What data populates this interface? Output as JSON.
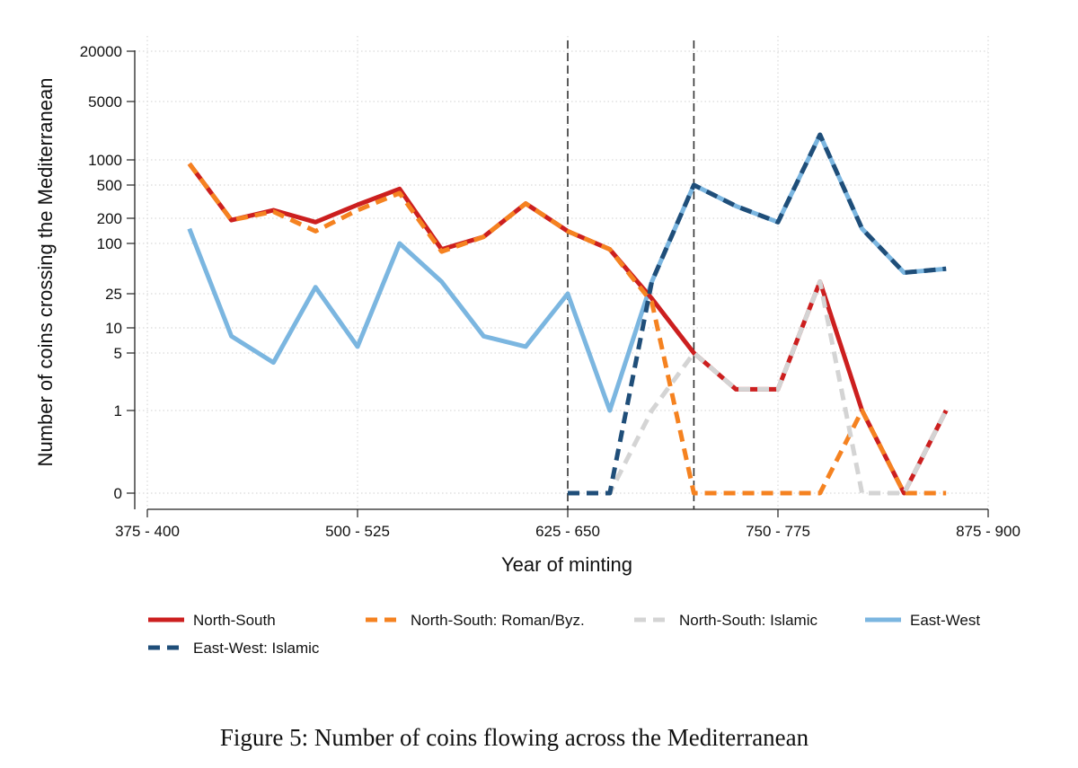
{
  "caption": "Figure 5: Number of coins flowing across the Mediterranean",
  "chart_data": {
    "type": "line",
    "title": "",
    "xlabel": "Year of minting",
    "ylabel": "Number of coins crossing the Mediterranean",
    "y_scale": "log(y+1)",
    "grid": true,
    "legend_position": "bottom",
    "x_tick_labels": [
      "375 - 400",
      "500 - 525",
      "625 - 650",
      "750 - 775",
      "875 - 900"
    ],
    "y_ticks": [
      0,
      1,
      5,
      10,
      25,
      100,
      200,
      500,
      1000,
      5000,
      20000
    ],
    "y_tick_labels": [
      "0",
      "1",
      "5",
      "10",
      "25",
      "100",
      "200",
      "500",
      "1000",
      "5000",
      "20000"
    ],
    "vertical_lines": [
      "625 - 650",
      "700 - 725"
    ],
    "x": [
      "400 - 425",
      "425 - 450",
      "450 - 475",
      "475 - 500",
      "500 - 525",
      "525 - 550",
      "550 - 575",
      "575 - 600",
      "600 - 625",
      "625 - 650",
      "650 - 675",
      "675 - 700",
      "700 - 725",
      "725 - 750",
      "750 - 775",
      "775 - 800",
      "800 - 825",
      "825 - 850",
      "850 - 875"
    ],
    "series": [
      {
        "name": "North-South",
        "color": "#cc1f1f",
        "style": "solid",
        "values": [
          900,
          190,
          250,
          180,
          290,
          450,
          85,
          120,
          300,
          140,
          85,
          22,
          5,
          2,
          2,
          35,
          1,
          0,
          1
        ]
      },
      {
        "name": "North-South: Roman/Byz.",
        "color": "#f58220",
        "style": "dashed",
        "values": [
          900,
          190,
          240,
          140,
          250,
          400,
          80,
          120,
          300,
          140,
          85,
          20,
          0,
          0,
          0,
          0,
          1,
          0,
          0
        ]
      },
      {
        "name": "North-South: Islamic",
        "color": "#d4d4d4",
        "style": "dashed",
        "values": [
          null,
          null,
          null,
          null,
          null,
          null,
          null,
          null,
          null,
          0,
          0,
          1,
          5,
          2,
          2,
          35,
          0,
          0,
          1
        ]
      },
      {
        "name": "East-West",
        "color": "#7bb6e0",
        "style": "solid",
        "values": [
          150,
          8,
          4,
          30,
          6,
          100,
          35,
          8,
          6,
          25,
          1,
          35,
          500,
          280,
          180,
          2000,
          150,
          45,
          50
        ]
      },
      {
        "name": "East-West: Islamic",
        "color": "#1f4e79",
        "style": "dashed",
        "values": [
          null,
          null,
          null,
          null,
          null,
          null,
          null,
          null,
          null,
          0,
          0,
          35,
          500,
          280,
          180,
          2000,
          150,
          45,
          50
        ]
      }
    ]
  }
}
